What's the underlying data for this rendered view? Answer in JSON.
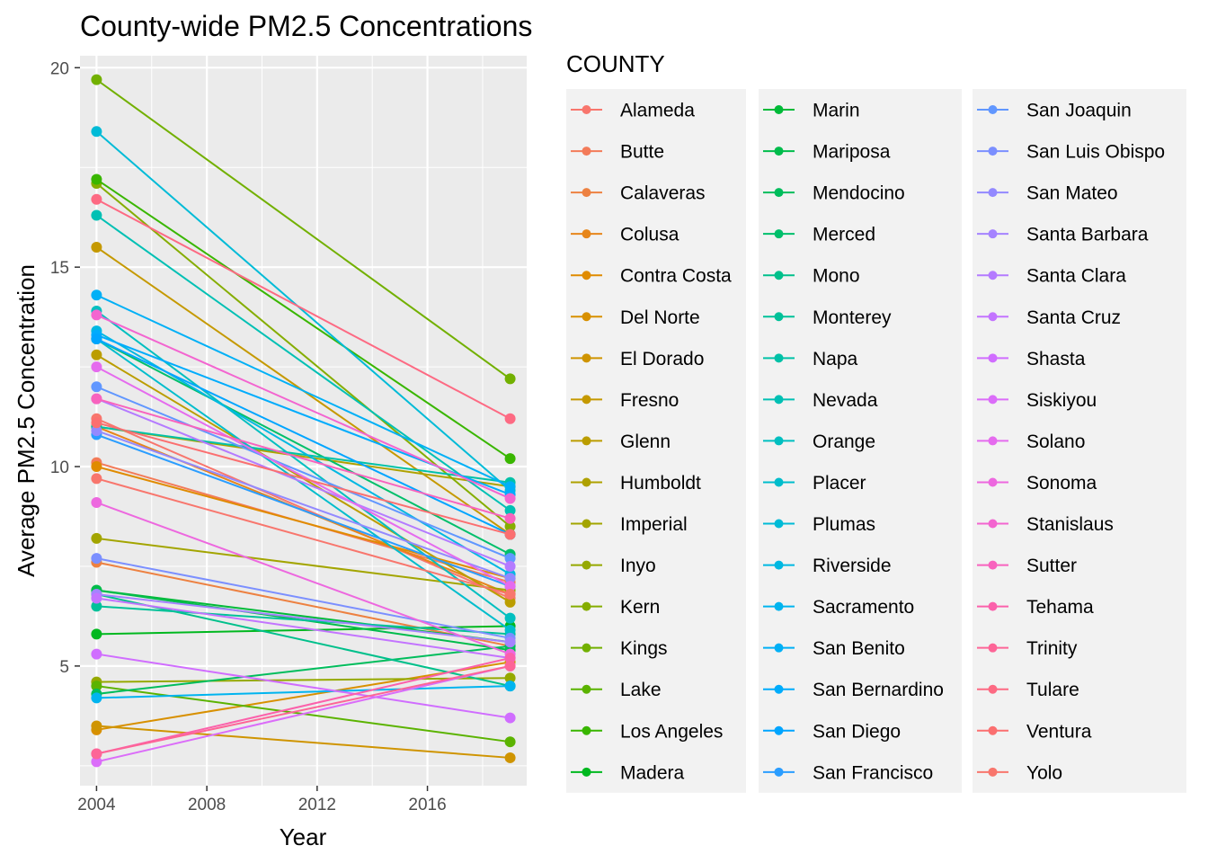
{
  "chart_data": {
    "type": "line",
    "title": "County-wide PM2.5 Concentrations",
    "xlabel": "Year",
    "ylabel": "Average PM2.5 Concentration",
    "x": [
      2004,
      2019
    ],
    "xlim": [
      2003.4,
      2019.6
    ],
    "ylim": [
      2.0,
      20.3
    ],
    "xticks": [
      2004,
      2008,
      2012,
      2016
    ],
    "yticks": [
      5,
      10,
      15,
      20
    ],
    "grid": true,
    "legend": {
      "title": "COUNTY",
      "position": "right",
      "columns": 3
    },
    "series": [
      {
        "name": "Alameda",
        "values": [
          11.2,
          6.7
        ],
        "color": "#F8766D"
      },
      {
        "name": "Butte",
        "values": [
          10.1,
          7.1
        ],
        "color": "#F37B59"
      },
      {
        "name": "Calaveras",
        "values": [
          7.6,
          5.5
        ],
        "color": "#ED8141"
      },
      {
        "name": "Colusa",
        "values": [
          11.0,
          6.8
        ],
        "color": "#E7861B"
      },
      {
        "name": "Contra Costa",
        "values": [
          10.0,
          7.2
        ],
        "color": "#E08B00"
      },
      {
        "name": "Del Norte",
        "values": [
          3.4,
          5.1
        ],
        "color": "#D89000"
      },
      {
        "name": "El Dorado",
        "values": [
          3.5,
          2.7
        ],
        "color": "#CF9400"
      },
      {
        "name": "Fresno",
        "values": [
          15.5,
          8.3
        ],
        "color": "#C59900"
      },
      {
        "name": "Glenn",
        "values": [
          12.8,
          6.6
        ],
        "color": "#BB9D00"
      },
      {
        "name": "Humboldt",
        "values": [
          11.0,
          9.5
        ],
        "color": "#AFA100"
      },
      {
        "name": "Imperial",
        "values": [
          8.2,
          6.9
        ],
        "color": "#A3A500"
      },
      {
        "name": "Inyo",
        "values": [
          4.6,
          4.7
        ],
        "color": "#95A900"
      },
      {
        "name": "Kern",
        "values": [
          17.1,
          8.5
        ],
        "color": "#85AD00"
      },
      {
        "name": "Kings",
        "values": [
          19.7,
          12.2
        ],
        "color": "#72B000"
      },
      {
        "name": "Lake",
        "values": [
          4.5,
          3.1
        ],
        "color": "#5BB300"
      },
      {
        "name": "Los Angeles",
        "values": [
          17.2,
          10.2
        ],
        "color": "#39B600"
      },
      {
        "name": "Madera",
        "values": [
          5.8,
          6.0
        ],
        "color": "#00B81F"
      },
      {
        "name": "Marin",
        "values": [
          6.9,
          5.6
        ],
        "color": "#00BA38"
      },
      {
        "name": "Mariposa",
        "values": [
          6.9,
          5.4
        ],
        "color": "#00BC4B"
      },
      {
        "name": "Mendocino",
        "values": [
          4.3,
          5.5
        ],
        "color": "#00BD5C"
      },
      {
        "name": "Merced",
        "values": [
          13.2,
          7.8
        ],
        "color": "#00BF6B"
      },
      {
        "name": "Mono",
        "values": [
          6.8,
          4.5
        ],
        "color": "#00C08B"
      },
      {
        "name": "Monterey",
        "values": [
          6.5,
          5.8
        ],
        "color": "#00C199"
      },
      {
        "name": "Napa",
        "values": [
          11.0,
          9.6
        ],
        "color": "#00C1A7"
      },
      {
        "name": "Nevada",
        "values": [
          16.3,
          8.9
        ],
        "color": "#00C0B4"
      },
      {
        "name": "Orange",
        "values": [
          13.9,
          6.2
        ],
        "color": "#00BFC0"
      },
      {
        "name": "Placer",
        "values": [
          13.2,
          5.9
        ],
        "color": "#00BDCC"
      },
      {
        "name": "Plumas",
        "values": [
          18.4,
          9.4
        ],
        "color": "#00BBD7"
      },
      {
        "name": "Riverside",
        "values": [
          13.4,
          7.3
        ],
        "color": "#00B8E2"
      },
      {
        "name": "Sacramento",
        "values": [
          4.2,
          4.5
        ],
        "color": "#00B4EF"
      },
      {
        "name": "San Benito",
        "values": [
          14.3,
          9.5
        ],
        "color": "#00B0F6"
      },
      {
        "name": "San Bernardino",
        "values": [
          13.3,
          9.3
        ],
        "color": "#00ACFC"
      },
      {
        "name": "San Diego",
        "values": [
          13.2,
          8.3
        ],
        "color": "#00A5FF"
      },
      {
        "name": "San Francisco",
        "values": [
          10.8,
          7.0
        ],
        "color": "#2A9DFF"
      },
      {
        "name": "San Joaquin",
        "values": [
          12.0,
          7.7
        ],
        "color": "#6197FF"
      },
      {
        "name": "San Luis Obispo",
        "values": [
          7.7,
          5.7
        ],
        "color": "#7B8FFF"
      },
      {
        "name": "San Mateo",
        "values": [
          10.9,
          7.2
        ],
        "color": "#9389FF"
      },
      {
        "name": "Santa Barbara",
        "values": [
          6.8,
          5.6
        ],
        "color": "#A583FF"
      },
      {
        "name": "Santa Clara",
        "values": [
          11.7,
          7.5
        ],
        "color": "#B47BFF"
      },
      {
        "name": "Santa Cruz",
        "values": [
          6.7,
          5.2
        ],
        "color": "#C374FF"
      },
      {
        "name": "Shasta",
        "values": [
          5.3,
          3.7
        ],
        "color": "#D06DFF"
      },
      {
        "name": "Siskiyou",
        "values": [
          2.6,
          5.0
        ],
        "color": "#DB6DF9"
      },
      {
        "name": "Solano",
        "values": [
          12.5,
          7.0
        ],
        "color": "#E56BEE"
      },
      {
        "name": "Sonoma",
        "values": [
          9.1,
          5.3
        ],
        "color": "#ED68DF"
      },
      {
        "name": "Stanislaus",
        "values": [
          13.8,
          9.2
        ],
        "color": "#F365D0"
      },
      {
        "name": "Sutter",
        "values": [
          11.7,
          8.7
        ],
        "color": "#F863BE"
      },
      {
        "name": "Tehama",
        "values": [
          2.8,
          5.2
        ],
        "color": "#FB61AB"
      },
      {
        "name": "Trinity",
        "values": [
          2.8,
          5.0
        ],
        "color": "#FD6597"
      },
      {
        "name": "Tulare",
        "values": [
          16.7,
          11.2
        ],
        "color": "#FD6A83"
      },
      {
        "name": "Ventura",
        "values": [
          11.1,
          8.3
        ],
        "color": "#FB6F70"
      },
      {
        "name": "Yolo",
        "values": [
          9.7,
          6.8
        ],
        "color": "#F8766D"
      }
    ]
  }
}
